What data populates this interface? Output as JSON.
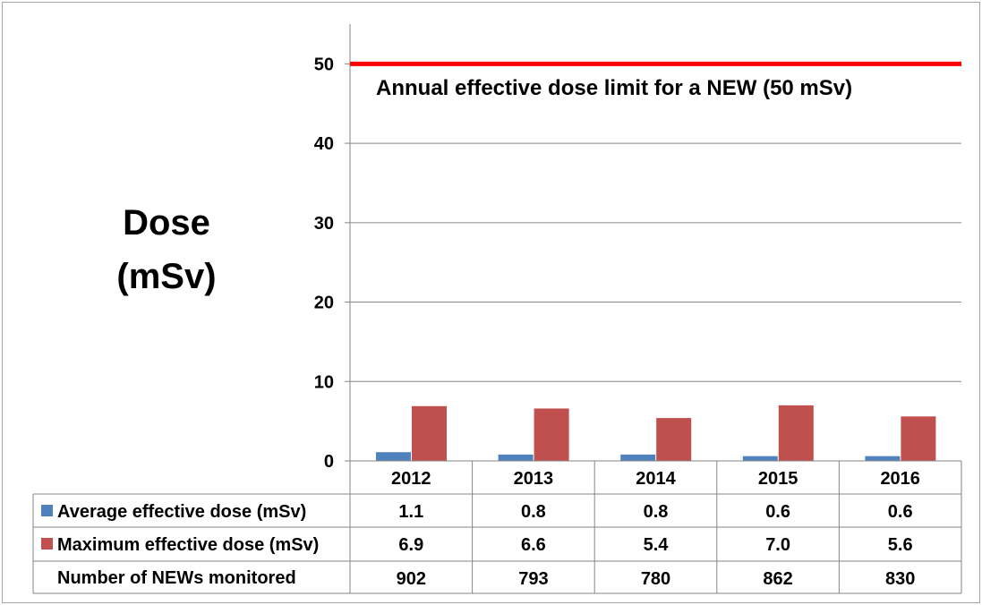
{
  "chart_data": {
    "type": "bar",
    "ylabel_lines": [
      "Dose",
      "(mSv)"
    ],
    "ylim": [
      0,
      55
    ],
    "yticks": [
      0,
      10,
      20,
      30,
      40,
      50
    ],
    "grid": true,
    "legend": "data-table",
    "categories": [
      "2012",
      "2013",
      "2014",
      "2015",
      "2016"
    ],
    "series": [
      {
        "name": "Average effective dose (mSv)",
        "color": "#4f81bd",
        "values": [
          1.1,
          0.8,
          0.8,
          0.6,
          0.6
        ],
        "labels": [
          "1.1",
          "0.8",
          "0.8",
          "0.6",
          "0.6"
        ]
      },
      {
        "name": "Maximum effective dose (mSv)",
        "color": "#c0504d",
        "values": [
          6.9,
          6.6,
          5.4,
          7.0,
          5.6
        ],
        "labels": [
          "6.9",
          "6.6",
          "5.4",
          "7.0",
          "5.6"
        ]
      }
    ],
    "table_extra_row": {
      "name": "Number of NEWs monitored",
      "values": [
        "902",
        "793",
        "780",
        "862",
        "830"
      ]
    },
    "reference_line": {
      "value": 50,
      "color": "#ff0000",
      "label": "Annual effective dose limit for a NEW (50 mSv)"
    }
  }
}
